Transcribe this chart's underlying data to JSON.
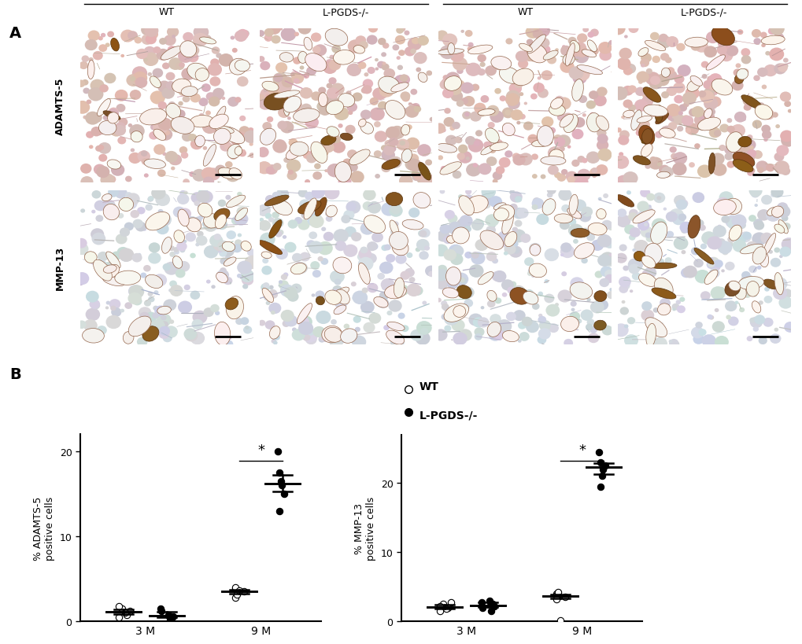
{
  "panel_A_label": "A",
  "panel_B_label": "B",
  "row_labels": [
    "ADAMTS-5",
    "MMP-13"
  ],
  "col_group_label_3m": "3M",
  "col_group_label_9m": "9M",
  "col_sub_labels": [
    "WT",
    "L-PGDS-/-",
    "WT",
    "L-PGDS-/-"
  ],
  "legend_wt": "WT",
  "legend_ko": "L-PGDS-/-",
  "adamts5_ylabel": "% ADAMTS-5\npositive cells",
  "mmp13_ylabel": "% MMP-13\npositive cells",
  "xlabel_3m": "3 M",
  "xlabel_9m": "9 M",
  "adamts5_wt_3m": [
    1.5,
    1.2,
    0.8,
    1.0,
    0.5,
    1.8
  ],
  "adamts5_ko_3m": [
    1.2,
    0.5,
    0.8,
    0.3,
    1.5,
    0.6
  ],
  "adamts5_wt_9m": [
    3.5,
    3.8,
    4.0,
    2.8,
    3.2,
    3.6
  ],
  "adamts5_ko_9m": [
    16.0,
    17.5,
    15.0,
    20.0,
    13.0,
    16.5
  ],
  "mmp13_wt_3m": [
    2.5,
    2.8,
    2.0,
    1.8,
    2.2,
    1.5
  ],
  "mmp13_ko_3m": [
    2.0,
    2.5,
    3.0,
    1.5,
    2.8,
    2.2
  ],
  "mmp13_wt_9m": [
    3.5,
    4.0,
    3.8,
    3.2,
    4.2,
    0.2
  ],
  "mmp13_ko_9m": [
    22.0,
    23.0,
    22.5,
    24.5,
    19.5,
    21.0
  ],
  "adamts5_ylim": [
    0,
    22
  ],
  "adamts5_yticks": [
    0,
    10,
    20
  ],
  "mmp13_ylim": [
    0,
    27
  ],
  "mmp13_yticks": [
    0,
    10,
    20
  ],
  "marker_size": 36,
  "lw_median": 1.8,
  "background_color": "#ffffff",
  "pink_bg": [
    0.918,
    0.82,
    0.8
  ],
  "blue_bg": [
    0.87,
    0.878,
    0.895
  ],
  "brown_col": [
    0.52,
    0.33,
    0.12
  ],
  "pink_tissue": [
    0.86,
    0.73,
    0.71
  ],
  "blue_tissue": [
    0.82,
    0.84,
    0.87
  ],
  "lacuna_col": [
    0.97,
    0.95,
    0.93
  ],
  "cell_edge": [
    0.58,
    0.4,
    0.3
  ],
  "scale_bar_col": "#000000"
}
